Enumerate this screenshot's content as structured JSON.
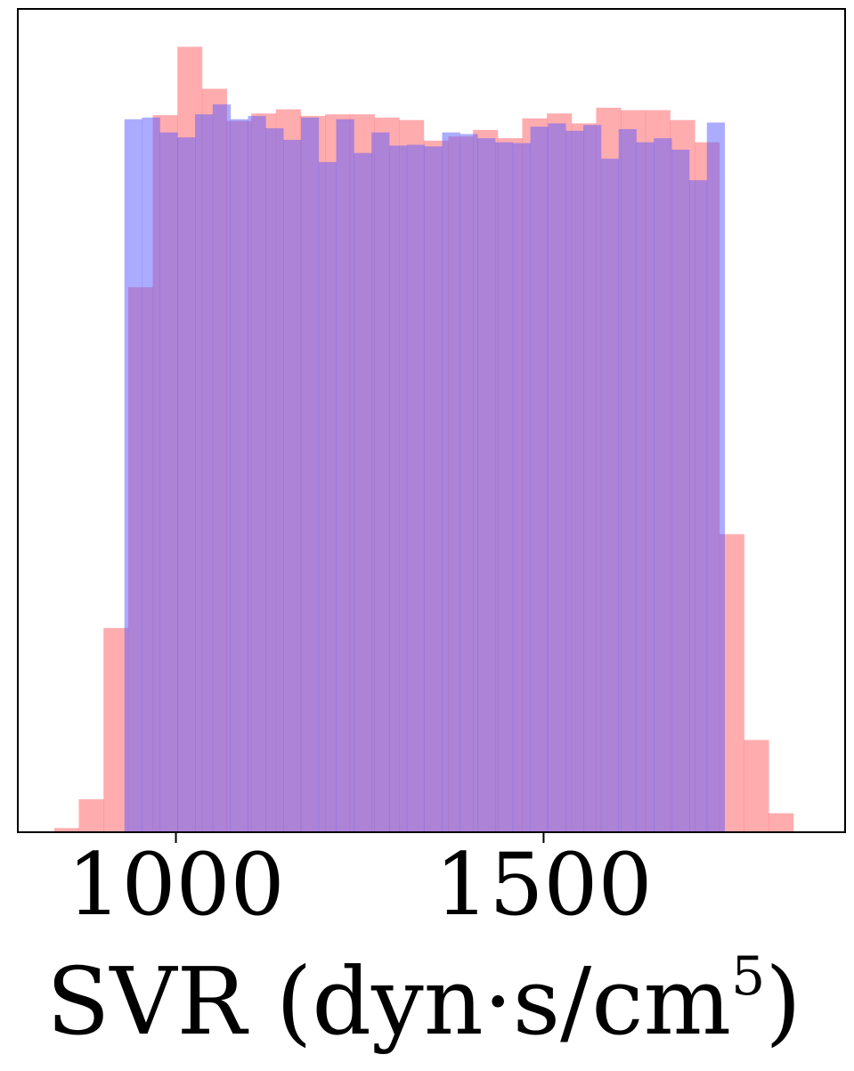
{
  "chart_data": {
    "type": "bar",
    "xlabel_main": "SVR (dyn·s/cm",
    "xlabel_exponent": "5",
    "xlabel_close": ")",
    "xticks": [
      1000,
      1500
    ],
    "xticks_text": [
      "1000",
      "1500"
    ],
    "xlim": [
      785,
      1910
    ],
    "ylim": [
      0,
      1000
    ],
    "yticks_visible": false,
    "grid": false,
    "legend": "none",
    "bar_mode": "overlay",
    "series": [
      {
        "color": "#ff5a5f",
        "opacity": 0.5,
        "bin_width": 33.5,
        "bin_edges": [
          834.5,
          868.0,
          901.5,
          935.0,
          968.5,
          1002.0,
          1035.5,
          1069.0,
          1102.5,
          1136.0,
          1169.5,
          1203.0,
          1236.5,
          1270.0,
          1303.5,
          1337.0,
          1370.5,
          1404.0,
          1437.5,
          1471.0,
          1504.5,
          1538.0,
          1571.5,
          1605.0,
          1638.5,
          1672.0,
          1705.5,
          1739.0,
          1772.5,
          1806.0,
          1839.5
        ],
        "values": [
          5,
          40,
          248,
          662,
          871,
          954,
          903,
          864,
          873,
          878,
          870,
          872,
          872,
          868,
          865,
          840,
          845,
          853,
          843,
          867,
          873,
          861,
          880,
          877,
          877,
          865,
          838,
          362,
          112,
          23
        ]
      },
      {
        "color": "#5a5aff",
        "opacity": 0.5,
        "bin_width": 24.0,
        "bin_edges": [
          930.0,
          954.0,
          978.0,
          1002.0,
          1026.0,
          1050.0,
          1074.0,
          1098.0,
          1122.0,
          1146.0,
          1170.0,
          1194.0,
          1218.0,
          1242.0,
          1266.0,
          1290.0,
          1314.0,
          1338.0,
          1362.0,
          1386.0,
          1410.0,
          1434.0,
          1458.0,
          1482.0,
          1506.0,
          1530.0,
          1554.0,
          1578.0,
          1602.0,
          1626.0,
          1650.0,
          1674.0,
          1698.0,
          1722.0,
          1746.0
        ],
        "values": [
          866,
          868,
          850,
          844,
          872,
          884,
          866,
          870,
          855,
          841,
          868,
          814,
          866,
          825,
          850,
          834,
          835,
          833,
          850,
          848,
          843,
          838,
          837,
          857,
          861,
          852,
          859,
          818,
          854,
          838,
          843,
          829,
          792,
          862
        ]
      }
    ]
  }
}
